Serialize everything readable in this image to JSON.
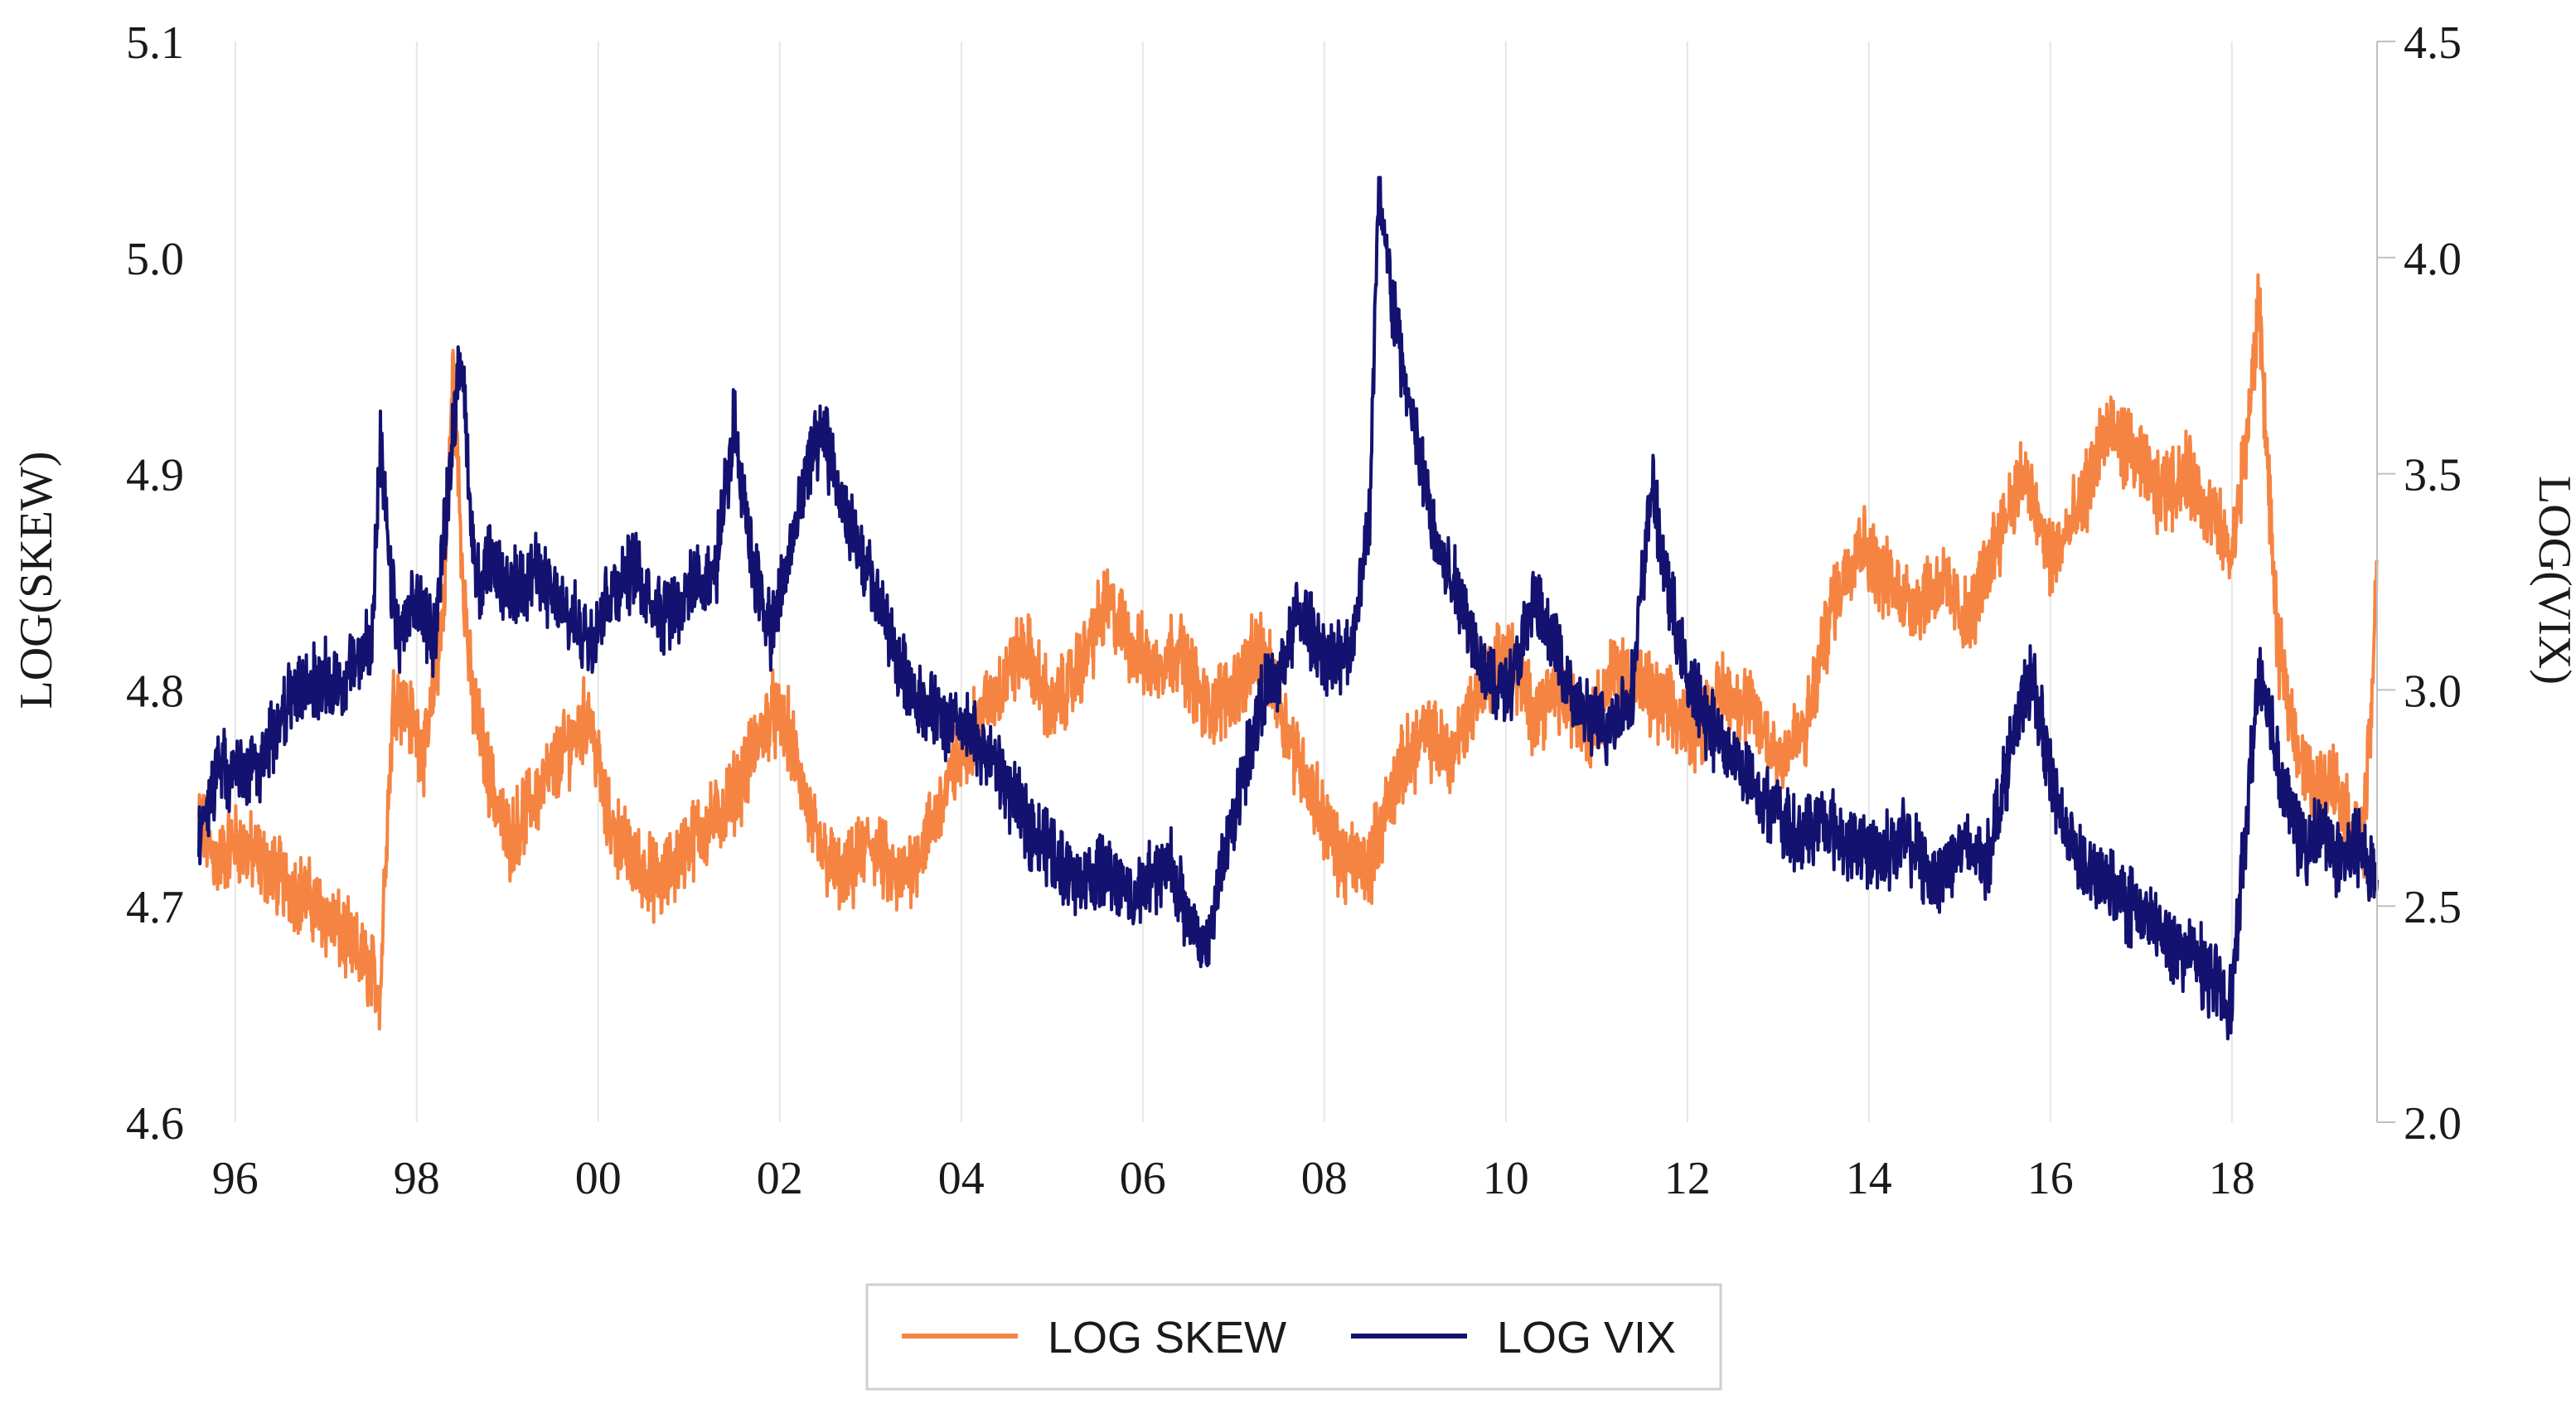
{
  "chart_data": {
    "type": "line",
    "title": "",
    "xlabel": "",
    "ylabel_left": "LOG(SKEW)",
    "ylabel_right": "LOG(VIX)",
    "x_range": [
      1995.6,
      2019.6
    ],
    "x_ticks": [
      {
        "value": 1996,
        "label": "96"
      },
      {
        "value": 1998,
        "label": "98"
      },
      {
        "value": 2000,
        "label": "00"
      },
      {
        "value": 2002,
        "label": "02"
      },
      {
        "value": 2004,
        "label": "04"
      },
      {
        "value": 2006,
        "label": "06"
      },
      {
        "value": 2008,
        "label": "08"
      },
      {
        "value": 2010,
        "label": "10"
      },
      {
        "value": 2012,
        "label": "12"
      },
      {
        "value": 2014,
        "label": "14"
      },
      {
        "value": 2016,
        "label": "16"
      },
      {
        "value": 2018,
        "label": "18"
      }
    ],
    "y_left": {
      "range": [
        4.6,
        5.1
      ],
      "ticks": [
        "4.6",
        "4.7",
        "4.8",
        "4.9",
        "5.0",
        "5.1"
      ]
    },
    "y_right": {
      "range": [
        2.0,
        4.5
      ],
      "ticks": [
        "2.0",
        "2.5",
        "3.0",
        "3.5",
        "4.0",
        "4.5"
      ]
    },
    "grid": "vertical",
    "legend_position": "bottom-center",
    "series": [
      {
        "name": "LOG SKEW",
        "axis": "left",
        "color": "#F58442",
        "x": [
          1995.6,
          1995.8,
          1996.0,
          1996.3,
          1996.6,
          1996.9,
          1997.1,
          1997.3,
          1997.5,
          1997.6,
          1997.65,
          1997.75,
          1997.9,
          1998.1,
          1998.3,
          1998.4,
          1998.5,
          1998.6,
          1998.8,
          1999.0,
          1999.3,
          1999.6,
          1999.9,
          2000.1,
          2000.4,
          2000.7,
          2001.0,
          2001.3,
          2001.6,
          2001.9,
          2002.1,
          2002.4,
          2002.7,
          2003.0,
          2003.3,
          2003.6,
          2003.9,
          2004.1,
          2004.4,
          2004.7,
          2005.0,
          2005.3,
          2005.6,
          2005.9,
          2006.1,
          2006.4,
          2006.7,
          2007.0,
          2007.3,
          2007.6,
          2007.9,
          2008.2,
          2008.5,
          2008.8,
          2009.1,
          2009.4,
          2009.7,
          2010.0,
          2010.3,
          2010.6,
          2010.9,
          2011.2,
          2011.5,
          2011.8,
          2012.1,
          2012.4,
          2012.7,
          2013.0,
          2013.3,
          2013.6,
          2013.9,
          2014.2,
          2014.5,
          2014.8,
          2015.1,
          2015.4,
          2015.7,
          2016.0,
          2016.3,
          2016.6,
          2016.9,
          2017.2,
          2017.5,
          2017.8,
          2018.0,
          2018.2,
          2018.3,
          2018.5,
          2018.7,
          2018.9,
          2019.1,
          2019.3,
          2019.45,
          2019.55,
          2019.6
        ],
        "values": [
          4.74,
          4.72,
          4.73,
          4.72,
          4.71,
          4.7,
          4.69,
          4.68,
          4.67,
          4.66,
          4.72,
          4.8,
          4.79,
          4.77,
          4.84,
          4.95,
          4.86,
          4.8,
          4.76,
          4.73,
          4.75,
          4.77,
          4.79,
          4.74,
          4.72,
          4.71,
          4.73,
          4.74,
          4.76,
          4.79,
          4.78,
          4.73,
          4.71,
          4.73,
          4.71,
          4.73,
          4.76,
          4.78,
          4.8,
          4.82,
          4.79,
          4.81,
          4.84,
          4.82,
          4.81,
          4.82,
          4.79,
          4.8,
          4.82,
          4.78,
          4.75,
          4.72,
          4.72,
          4.76,
          4.78,
          4.77,
          4.8,
          4.82,
          4.79,
          4.8,
          4.78,
          4.81,
          4.8,
          4.79,
          4.78,
          4.8,
          4.79,
          4.77,
          4.78,
          4.84,
          4.87,
          4.85,
          4.84,
          4.85,
          4.83,
          4.87,
          4.9,
          4.86,
          4.88,
          4.92,
          4.91,
          4.89,
          4.9,
          4.88,
          4.86,
          4.93,
          4.98,
          4.82,
          4.78,
          4.75,
          4.76,
          4.74,
          4.73,
          4.8,
          4.86
        ]
      },
      {
        "name": "LOG VIX",
        "axis": "right",
        "color": "#131270",
        "x": [
          1995.6,
          1995.8,
          1996.0,
          1996.3,
          1996.6,
          1996.9,
          1997.2,
          1997.5,
          1997.6,
          1997.7,
          1997.8,
          1998.0,
          1998.2,
          1998.4,
          1998.5,
          1998.6,
          1998.7,
          1998.8,
          1999.0,
          1999.3,
          1999.6,
          1999.9,
          2000.1,
          2000.4,
          2000.7,
          2001.0,
          2001.3,
          2001.5,
          2001.7,
          2001.9,
          2002.1,
          2002.3,
          2002.5,
          2002.7,
          2002.9,
          2003.1,
          2003.3,
          2003.6,
          2003.9,
          2004.1,
          2004.4,
          2004.7,
          2005.0,
          2005.3,
          2005.6,
          2005.9,
          2006.1,
          2006.3,
          2006.5,
          2006.7,
          2006.9,
          2007.1,
          2007.3,
          2007.5,
          2007.7,
          2007.9,
          2008.1,
          2008.3,
          2008.5,
          2008.6,
          2008.75,
          2008.9,
          2009.1,
          2009.3,
          2009.5,
          2009.7,
          2009.9,
          2010.1,
          2010.3,
          2010.5,
          2010.8,
          2011.1,
          2011.4,
          2011.6,
          2011.8,
          2012.0,
          2012.3,
          2012.6,
          2012.9,
          2013.2,
          2013.5,
          2013.8,
          2014.1,
          2014.4,
          2014.7,
          2015.0,
          2015.3,
          2015.6,
          2015.8,
          2016.0,
          2016.2,
          2016.4,
          2016.7,
          2017.0,
          2017.3,
          2017.6,
          2017.9,
          2018.0,
          2018.1,
          2018.3,
          2018.6,
          2018.8,
          2019.0,
          2019.2,
          2019.4,
          2019.6
        ],
        "values": [
          2.66,
          2.82,
          2.8,
          2.84,
          2.98,
          3.02,
          3.02,
          3.12,
          3.55,
          3.28,
          3.12,
          3.2,
          3.12,
          3.6,
          3.78,
          3.38,
          3.22,
          3.3,
          3.22,
          3.28,
          3.18,
          3.12,
          3.22,
          3.28,
          3.18,
          3.22,
          3.28,
          3.62,
          3.3,
          3.12,
          3.3,
          3.52,
          3.58,
          3.42,
          3.3,
          3.2,
          3.06,
          2.96,
          2.92,
          2.9,
          2.82,
          2.7,
          2.62,
          2.56,
          2.58,
          2.52,
          2.56,
          2.6,
          2.46,
          2.4,
          2.62,
          2.8,
          2.98,
          3.02,
          3.18,
          3.12,
          3.06,
          3.1,
          3.42,
          4.15,
          3.9,
          3.7,
          3.48,
          3.3,
          3.22,
          3.08,
          3.0,
          3.04,
          3.2,
          3.12,
          2.96,
          2.9,
          3.0,
          3.48,
          3.22,
          3.02,
          2.9,
          2.82,
          2.74,
          2.66,
          2.7,
          2.64,
          2.62,
          2.66,
          2.56,
          2.64,
          2.6,
          2.9,
          3.04,
          2.8,
          2.66,
          2.58,
          2.54,
          2.48,
          2.42,
          2.38,
          2.3,
          2.28,
          2.55,
          3.05,
          2.75,
          2.62,
          2.68,
          2.6,
          2.64,
          2.56
        ]
      }
    ],
    "legend": [
      "LOG SKEW",
      "LOG VIX"
    ]
  }
}
